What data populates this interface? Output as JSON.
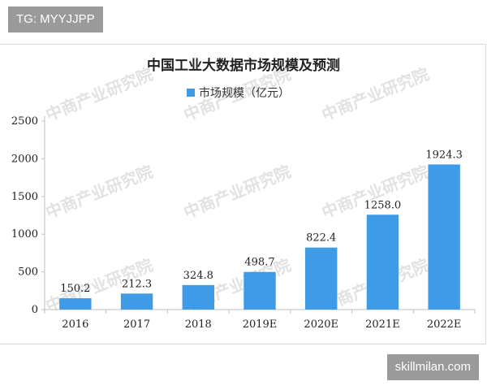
{
  "top_tag": "TG: MYYJJPP",
  "bottom_tag": "skillmilan.com",
  "watermark": "中商产业研究院",
  "colors": {
    "bar": "#3f9be6",
    "axis": "#bfbfbf",
    "grid": "#e6e6e6"
  },
  "chart_data": {
    "type": "bar",
    "title": "中国工业大数据市场规模及预测",
    "legend": "市场规模（亿元）",
    "legend_position": "top-center",
    "categories": [
      "2016",
      "2017",
      "2018",
      "2019E",
      "2020E",
      "2021E",
      "2022E"
    ],
    "series": [
      {
        "name": "市场规模（亿元）",
        "values": [
          150.2,
          212.3,
          324.8,
          498.7,
          822.4,
          1258.0,
          1924.3
        ]
      }
    ],
    "value_labels": [
      "150.2",
      "212.3",
      "324.8",
      "498.7",
      "822.4",
      "1258.0",
      "1924.3"
    ],
    "ylim": [
      0,
      2500
    ],
    "yticks": [
      0,
      500,
      1000,
      1500,
      2000,
      2500
    ],
    "grid": false
  }
}
